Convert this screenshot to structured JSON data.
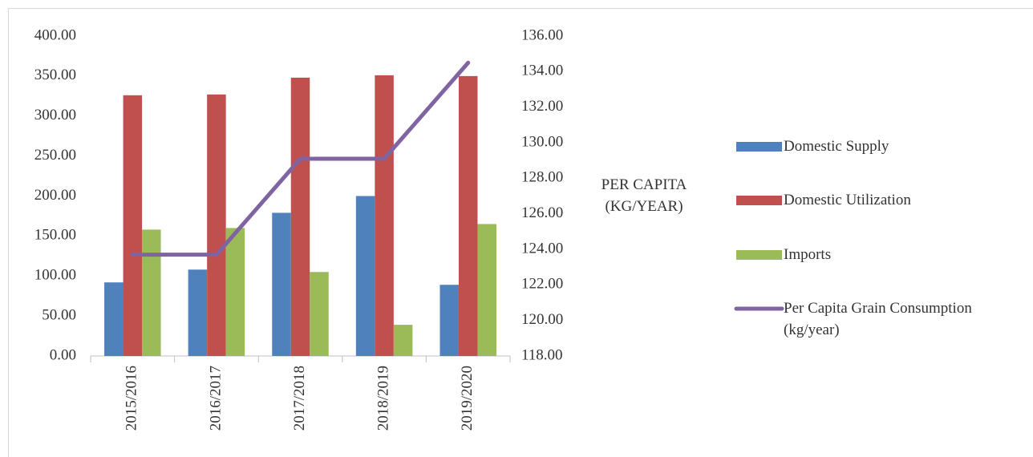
{
  "chart_data": {
    "type": "bar-line",
    "categories": [
      "2015/2016",
      "2016/2017",
      "2017/2018",
      "2018/2019",
      "2019/2020"
    ],
    "series": [
      {
        "name": "Domestic Supply",
        "color": "#4f81bd",
        "type": "bar",
        "values": [
          92,
          108,
          179,
          200,
          89
        ]
      },
      {
        "name": "Domestic Utilization",
        "color": "#c0504d",
        "type": "bar",
        "values": [
          326,
          327,
          348,
          351,
          350
        ]
      },
      {
        "name": "Imports",
        "color": "#9bbb59",
        "type": "bar",
        "values": [
          158,
          160,
          105,
          39,
          165
        ]
      },
      {
        "name": "Per Capita Grain Consumption (kg/year)",
        "color": "#8064a2",
        "type": "line",
        "axis": "y2",
        "values": [
          123.7,
          123.7,
          129.1,
          129.1,
          134.5
        ]
      }
    ],
    "ylim": [
      0,
      400
    ],
    "yticks": [
      {
        "value": 0,
        "label": "0.00"
      },
      {
        "value": 50,
        "label": "50.00"
      },
      {
        "value": 100,
        "label": "100.00"
      },
      {
        "value": 150,
        "label": "150.00"
      },
      {
        "value": 200,
        "label": "200.00"
      },
      {
        "value": 250,
        "label": "250.00"
      },
      {
        "value": 300,
        "label": "300.00"
      },
      {
        "value": 350,
        "label": "350.00"
      },
      {
        "value": 400,
        "label": "400.00"
      }
    ],
    "y2label": "PER CAPITA (KG/YEAR)",
    "y2lim": [
      118,
      136
    ],
    "y2ticks": [
      {
        "value": 118,
        "label": "118.00"
      },
      {
        "value": 120,
        "label": "120.00"
      },
      {
        "value": 122,
        "label": "122.00"
      },
      {
        "value": 124,
        "label": "124.00"
      },
      {
        "value": 126,
        "label": "126.00"
      },
      {
        "value": 128,
        "label": "128.00"
      },
      {
        "value": 130,
        "label": "130.00"
      },
      {
        "value": 132,
        "label": "132.00"
      },
      {
        "value": 134,
        "label": "134.00"
      },
      {
        "value": 136,
        "label": "136.00"
      }
    ],
    "legend": "right",
    "grid": false
  }
}
